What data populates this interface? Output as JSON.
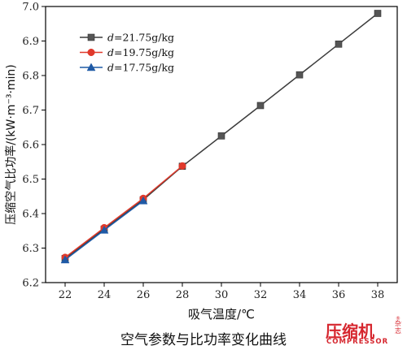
{
  "chart_data": {
    "type": "line",
    "title": "",
    "xlabel": "吸气温度/℃",
    "ylabel": "压缩空气比功率/(kW·m⁻³·min)",
    "xlim": [
      21,
      39
    ],
    "ylim": [
      6.2,
      7.0
    ],
    "x_ticks": [
      22,
      24,
      26,
      28,
      30,
      32,
      34,
      36,
      38
    ],
    "y_ticks": [
      "6.2",
      "6.3",
      "6.4",
      "6.5",
      "6.6",
      "6.7",
      "6.8",
      "6.9",
      "7.0"
    ],
    "grid": false,
    "legend_position": "top-left",
    "series": [
      {
        "name": "d=21.75g/kg",
        "prefix": "d",
        "suffix": "=21.75g/kg",
        "color": "#3c3c3c",
        "marker": "square",
        "x": [
          22,
          24,
          26,
          28,
          30,
          32,
          34,
          36,
          38
        ],
        "y": [
          6.27,
          6.355,
          6.44,
          6.537,
          6.625,
          6.713,
          6.802,
          6.891,
          6.98
        ]
      },
      {
        "name": "d=19.75g/kg",
        "prefix": "d",
        "suffix": "=19.75g/kg",
        "color": "#e0392b",
        "marker": "circle",
        "x": [
          22,
          24,
          26,
          28
        ],
        "y": [
          6.273,
          6.359,
          6.444,
          6.538
        ]
      },
      {
        "name": "d=17.75g/kg",
        "prefix": "d",
        "suffix": "=17.75g/kg",
        "color": "#1f5aa6",
        "marker": "triangle",
        "x": [
          22,
          24,
          26
        ],
        "y": [
          6.266,
          6.352,
          6.437
        ]
      }
    ]
  },
  "caption": "空气参数与比功率变化曲线",
  "logo": {
    "main": "压缩机",
    "sub": "COMPRESSOR",
    "side": "杂志",
    "reg": "®"
  }
}
